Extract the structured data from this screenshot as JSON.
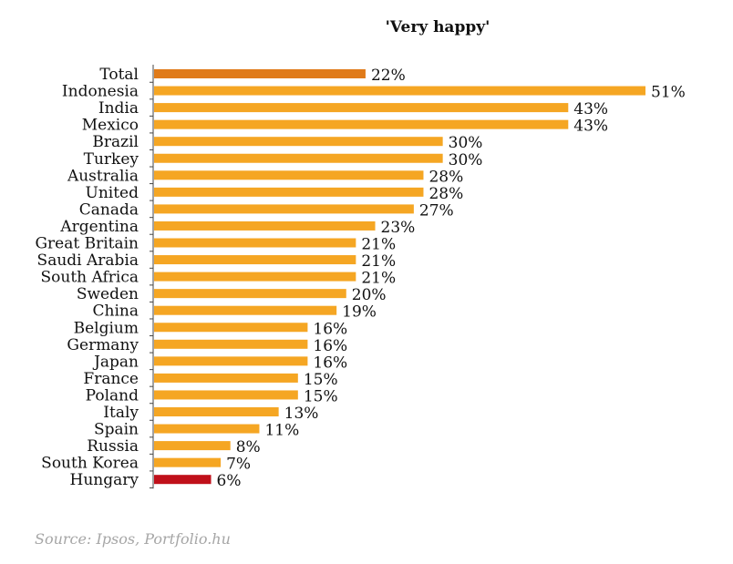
{
  "chart_data": {
    "type": "bar",
    "orientation": "horizontal",
    "title": "'Very happy'",
    "categories": [
      "Total",
      "Indonesia",
      "India",
      "Mexico",
      "Brazil",
      "Turkey",
      "Australia",
      "United",
      "Canada",
      "Argentina",
      "Great Britain",
      "Saudi Arabia",
      "South Africa",
      "Sweden",
      "China",
      "Belgium",
      "Germany",
      "Japan",
      "France",
      "Poland",
      "Italy",
      "Spain",
      "Russia",
      "South Korea",
      "Hungary"
    ],
    "values": [
      22,
      51,
      43,
      43,
      30,
      30,
      28,
      28,
      27,
      23,
      21,
      21,
      21,
      20,
      19,
      16,
      16,
      16,
      15,
      15,
      13,
      11,
      8,
      7,
      6
    ],
    "value_labels": [
      "22%",
      "51%",
      "43%",
      "43%",
      "30%",
      "30%",
      "28%",
      "28%",
      "27%",
      "23%",
      "21%",
      "21%",
      "21%",
      "20%",
      "19%",
      "16%",
      "16%",
      "16%",
      "15%",
      "15%",
      "13%",
      "11%",
      "8%",
      "7%",
      "6%"
    ],
    "highlight": {
      "Total": "#e07b1a",
      "Hungary": "#c0101a"
    },
    "bar_color": "#f5a623",
    "axis_color": "#444444",
    "xlim": [
      0,
      51
    ],
    "xlabel": "",
    "ylabel": "",
    "grid": false,
    "legend": "none",
    "source": "Source: Ipsos, Portfolio.hu"
  }
}
